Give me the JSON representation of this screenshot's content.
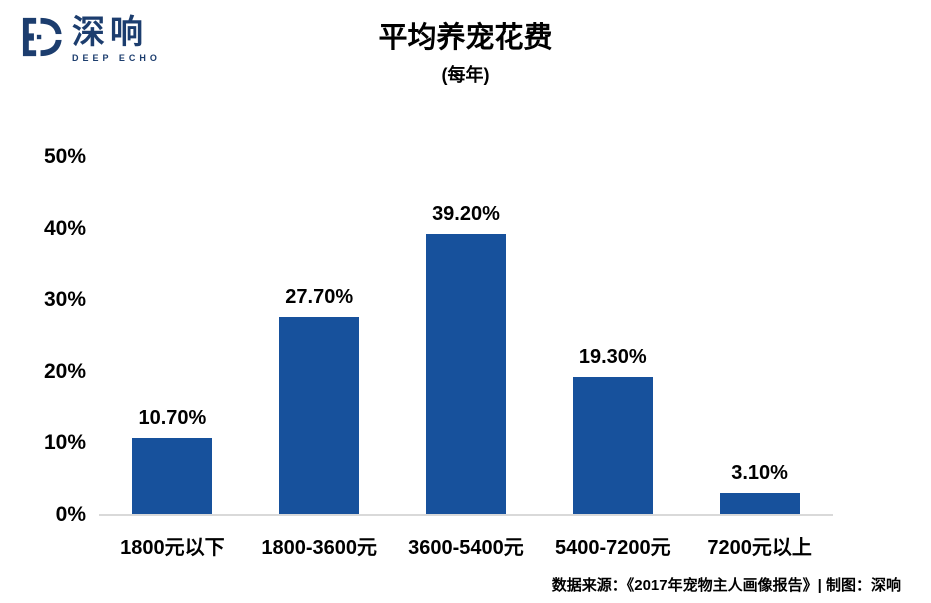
{
  "logo": {
    "name_cn": "深响",
    "name_en": "DEEP ECHO"
  },
  "chart_data": {
    "type": "bar",
    "title": "平均养宠花费",
    "subtitle": "(每年)",
    "categories": [
      "1800元以下",
      "1800-3600元",
      "3600-5400元",
      "5400-7200元",
      "7200元以上"
    ],
    "values": [
      10.7,
      27.7,
      39.2,
      19.3,
      3.1
    ],
    "value_labels": [
      "10.70%",
      "27.70%",
      "39.20%",
      "19.30%",
      "3.10%"
    ],
    "xlabel": "",
    "ylabel": "",
    "ylim": [
      0,
      50
    ],
    "y_ticks": [
      {
        "value": 50,
        "label": "50%"
      },
      {
        "value": 40,
        "label": "40%"
      },
      {
        "value": 30,
        "label": "30%"
      },
      {
        "value": 20,
        "label": "20%"
      },
      {
        "value": 10,
        "label": "10%"
      },
      {
        "value": 0,
        "label": "0%"
      }
    ],
    "grid": false,
    "legend": false
  },
  "footer": {
    "text": "数据来源：《2017年宠物主人画像报告》| 制图：深响"
  },
  "colors": {
    "bar": "#17519C",
    "logo": "#1C3D6E",
    "axis_line": "#D9D9D9",
    "text": "#000000"
  }
}
